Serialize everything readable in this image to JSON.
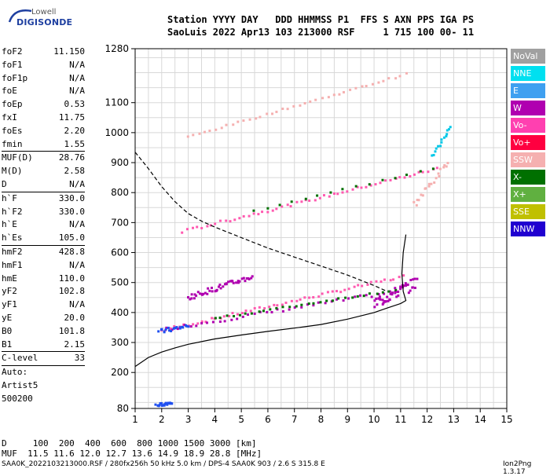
{
  "logo": {
    "top": "Lowell",
    "bottom": "DIGISONDE"
  },
  "header": {
    "line1": "Station YYYY DAY   DDD HHMMSS P1  FFS S AXN PPS IGA PS",
    "line2": "SaoLuis 2022 Apr13 103 213000 RSF     1 715 100 00- 11"
  },
  "params": [
    [
      {
        "k": "foF2",
        "v": "11.150"
      },
      {
        "k": "foF1",
        "v": "N/A"
      },
      {
        "k": "foF1p",
        "v": "N/A"
      },
      {
        "k": "foE",
        "v": "N/A"
      },
      {
        "k": "foEp",
        "v": "0.53"
      },
      {
        "k": "fxI",
        "v": "11.75"
      },
      {
        "k": "foEs",
        "v": "2.20"
      },
      {
        "k": "fmin",
        "v": "1.55"
      }
    ],
    [
      {
        "k": "MUF(D)",
        "v": "28.76"
      },
      {
        "k": "M(D)",
        "v": "2.58"
      },
      {
        "k": "D",
        "v": "N/A"
      }
    ],
    [
      {
        "k": "h`F",
        "v": "330.0"
      },
      {
        "k": "h`F2",
        "v": "330.0"
      },
      {
        "k": "h`E",
        "v": "N/A"
      },
      {
        "k": "h`Es",
        "v": "105.0"
      }
    ],
    [
      {
        "k": "hmF2",
        "v": "428.8"
      },
      {
        "k": "hmF1",
        "v": "N/A"
      },
      {
        "k": "hmE",
        "v": "110.0"
      },
      {
        "k": "yF2",
        "v": "102.8"
      },
      {
        "k": "yF1",
        "v": "N/A"
      },
      {
        "k": "yE",
        "v": "20.0"
      },
      {
        "k": "B0",
        "v": "101.8"
      },
      {
        "k": "B1",
        "v": "2.15"
      }
    ],
    [
      {
        "k": "C-level",
        "v": "33"
      }
    ]
  ],
  "artist": {
    "line1": "Auto:",
    "line2": "Artist5",
    "line3": "500200"
  },
  "legend": [
    {
      "label": "NoVal",
      "color": "#a0a0a0"
    },
    {
      "label": "NNE",
      "color": "#00e0f0"
    },
    {
      "label": "E",
      "color": "#3fa0f0"
    },
    {
      "label": "W",
      "color": "#b000b0"
    },
    {
      "label": "Vo-",
      "color": "#ff40b0"
    },
    {
      "label": "Vo+",
      "color": "#ff0040"
    },
    {
      "label": "SSW",
      "color": "#f5b0b0"
    },
    {
      "label": "X-",
      "color": "#007000"
    },
    {
      "label": "X+",
      "color": "#60b040"
    },
    {
      "label": "SSE",
      "color": "#c0c000"
    },
    {
      "label": "NNW",
      "color": "#2000d0"
    }
  ],
  "footer": {
    "line1": "D     100  200  400  600  800 1000 1500 3000 [km]",
    "line2": "MUF  11.5 11.6 12.0 12.7 13.6 14.9 18.9 28.8 [MHz]",
    "source": "SAA0K_2022103213000.RSF / 280fx256h 50 kHz 5.0 km / DPS-4 SAA0K 903 / 2.6 S 315.8 E",
    "version": "Ion2Png 1.3.17"
  },
  "chart_data": {
    "type": "scatter",
    "xlim": [
      1,
      15
    ],
    "ylim": [
      80,
      1280
    ],
    "x_ticks": [
      1,
      2,
      3,
      4,
      5,
      6,
      7,
      8,
      9,
      10,
      11,
      12,
      13,
      14,
      15
    ],
    "y_ticks": [
      80,
      200,
      300,
      400,
      500,
      600,
      700,
      800,
      900,
      1000,
      1100,
      1280
    ],
    "grid": true,
    "curves": [
      {
        "name": "dashed",
        "points": [
          [
            1,
            935
          ],
          [
            1.5,
            880
          ],
          [
            2,
            820
          ],
          [
            2.5,
            770
          ],
          [
            3,
            730
          ],
          [
            3.5,
            705
          ],
          [
            4,
            685
          ],
          [
            5,
            650
          ],
          [
            6,
            615
          ],
          [
            7,
            585
          ],
          [
            8,
            555
          ],
          [
            9,
            525
          ],
          [
            10,
            490
          ],
          [
            10.5,
            470
          ]
        ]
      },
      {
        "name": "solid",
        "points": [
          [
            1,
            220
          ],
          [
            1.5,
            250
          ],
          [
            2,
            268
          ],
          [
            2.5,
            282
          ],
          [
            3,
            294
          ],
          [
            4,
            312
          ],
          [
            5,
            325
          ],
          [
            6,
            337
          ],
          [
            7,
            348
          ],
          [
            8,
            360
          ],
          [
            9,
            378
          ],
          [
            10,
            400
          ],
          [
            10.5,
            415
          ],
          [
            11,
            430
          ],
          [
            11.2,
            440
          ],
          [
            11.1,
            470
          ],
          [
            11.05,
            530
          ],
          [
            11.1,
            600
          ],
          [
            11.2,
            660
          ]
        ]
      }
    ],
    "traces": [
      {
        "color": "pink",
        "x0": 2.0,
        "y0": 340,
        "x1": 11.1,
        "y1": 520,
        "n": 55,
        "spread": 10
      },
      {
        "color": "magenta",
        "x0": 2.2,
        "y0": 345,
        "x1": 10.8,
        "y1": 470,
        "n": 40,
        "spread": 12
      },
      {
        "color": "green",
        "x0": 4.0,
        "y0": 380,
        "x1": 10.8,
        "y1": 475,
        "n": 30,
        "spread": 6
      },
      {
        "color": "blue",
        "x0": 1.9,
        "y0": 335,
        "x1": 3.0,
        "y1": 355,
        "n": 20,
        "spread": 16
      },
      {
        "color": "pink",
        "x0": 2.8,
        "y0": 670,
        "x1": 12.4,
        "y1": 880,
        "n": 55,
        "spread": 10
      },
      {
        "color": "green",
        "x0": 5.5,
        "y0": 740,
        "x1": 12.2,
        "y1": 880,
        "n": 15,
        "spread": 6
      },
      {
        "color": "ssw",
        "x0": 3.0,
        "y0": 985,
        "x1": 11.2,
        "y1": 1195,
        "n": 40,
        "spread": 6
      },
      {
        "color": "magenta",
        "x0": 10.0,
        "y0": 430,
        "x1": 11.6,
        "y1": 500,
        "n": 45,
        "spread": 40
      },
      {
        "color": "magenta",
        "x0": 3.0,
        "y0": 450,
        "x1": 5.4,
        "y1": 520,
        "n": 45,
        "spread": 18
      },
      {
        "color": "blue",
        "x0": 1.8,
        "y0": 90,
        "x1": 2.4,
        "y1": 100,
        "n": 25,
        "spread": 10
      },
      {
        "color": "nne",
        "x0": 12.2,
        "y0": 920,
        "x1": 12.9,
        "y1": 1020,
        "n": 14,
        "spread": 8
      },
      {
        "color": "ssw",
        "x0": 11.5,
        "y0": 760,
        "x1": 12.8,
        "y1": 900,
        "n": 20,
        "spread": 20
      }
    ]
  }
}
